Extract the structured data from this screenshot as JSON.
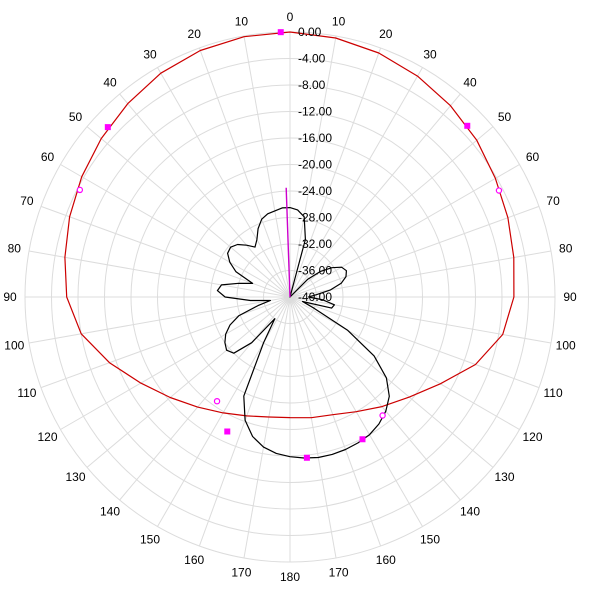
{
  "chart_data": {
    "type": "polar-line",
    "title": "",
    "angle_unit": "degrees",
    "angle_direction": "clockwise",
    "angle_zero": "top",
    "angle_tick_labels": [
      "0",
      "10",
      "20",
      "30",
      "40",
      "50",
      "60",
      "70",
      "80",
      "90",
      "100",
      "110",
      "120",
      "130",
      "140",
      "150",
      "160",
      "170",
      "180",
      "170",
      "160",
      "150",
      "140",
      "130",
      "120",
      "110",
      "100",
      "90",
      "80",
      "70",
      "60",
      "50",
      "40",
      "30",
      "20",
      "10"
    ],
    "radial_axis": {
      "label": "",
      "range": [
        -40,
        0
      ],
      "tick_values": [
        0,
        -4,
        -8,
        -12,
        -16,
        -20,
        -24,
        -28,
        -32,
        -36,
        -40
      ],
      "tick_labels": [
        "0.00",
        "-4.00",
        "-8.00",
        "-12.00",
        "-16.00",
        "-20.00",
        "-24.00",
        "-28.00",
        "-32.00",
        "-36.00",
        "-40.00"
      ]
    },
    "grid": true,
    "legend": "none",
    "colors": {
      "grid": "#dcdcdc",
      "series_red": "#cc0000",
      "series_black": "#000000",
      "marker": "#ff00ff",
      "reference_line": "#cc00cc"
    },
    "series": [
      {
        "color": "#cc0000",
        "angles": [
          0,
          10,
          20,
          30,
          40,
          50,
          60,
          70,
          80,
          90,
          100,
          110,
          120,
          130,
          140,
          150,
          160,
          170,
          180,
          190,
          200,
          210,
          220,
          230,
          240,
          250,
          260,
          270,
          280,
          290,
          300,
          310,
          320,
          330,
          340,
          350
        ],
        "values": [
          0,
          -0.3,
          -0.8,
          -1.5,
          -2.3,
          -3.2,
          -4.2,
          -5.0,
          -5.7,
          -6.2,
          -7.4,
          -10.2,
          -13.8,
          -16.5,
          -18.4,
          -20.0,
          -21.1,
          -21.5,
          -21.8,
          -21.6,
          -20.9,
          -19.8,
          -18.3,
          -16.4,
          -14.0,
          -11.0,
          -8.0,
          -6.3,
          -5.5,
          -4.6,
          -3.7,
          -2.8,
          -1.9,
          -1.0,
          -0.4,
          -0.1
        ]
      },
      {
        "color": "#000000",
        "angles": [
          0,
          5,
          10,
          15,
          20,
          25,
          30,
          35,
          40,
          45,
          50,
          55,
          60,
          65,
          70,
          75,
          80,
          85,
          90,
          95,
          100,
          105,
          110,
          115,
          120,
          125,
          130,
          135,
          140,
          145,
          150,
          155,
          160,
          165,
          170,
          175,
          180,
          185,
          190,
          195,
          200,
          205,
          210,
          215,
          220,
          225,
          230,
          235,
          240,
          245,
          250,
          255,
          260,
          265,
          270,
          275,
          280,
          285,
          290,
          295,
          300,
          305,
          310,
          315,
          320,
          325,
          330,
          335,
          340,
          345,
          350,
          355
        ],
        "values": [
          -26.5,
          -26.8,
          -27.7,
          -31.0,
          -40,
          -40,
          -40,
          -40,
          -40,
          -36.2,
          -34.0,
          -32.3,
          -31.0,
          -30.6,
          -31.0,
          -32.0,
          -33.8,
          -36.0,
          -37.2,
          -35.0,
          -33.2,
          -33.5,
          -38.0,
          -36.0,
          -30.0,
          -24.5,
          -21.0,
          -18.8,
          -17.5,
          -16.6,
          -16.0,
          -15.7,
          -15.5,
          -15.4,
          -15.4,
          -15.6,
          -15.9,
          -16.3,
          -17.0,
          -18.2,
          -20.2,
          -23.5,
          -32.0,
          -36.0,
          -31.0,
          -28.0,
          -27.5,
          -28.0,
          -28.8,
          -30.0,
          -31.8,
          -35.0,
          -37.0,
          -34.0,
          -30.2,
          -29.0,
          -29.5,
          -32.0,
          -34.0,
          -31.0,
          -29.5,
          -28.5,
          -28.3,
          -28.8,
          -29.8,
          -30.8,
          -30.0,
          -28.6,
          -27.5,
          -27.0,
          -26.8,
          -26.5
        ]
      }
    ],
    "markers": [
      {
        "angle": 358,
        "value": 0,
        "style": "filled"
      },
      {
        "angle": 313,
        "value": -2.4,
        "style": "filled"
      },
      {
        "angle": 297,
        "value": -4.4,
        "style": "hollow"
      },
      {
        "angle": 46,
        "value": -2.8,
        "style": "filled"
      },
      {
        "angle": 63,
        "value": -4.6,
        "style": "hollow"
      },
      {
        "angle": 174,
        "value": -15.6,
        "style": "filled"
      },
      {
        "angle": 153,
        "value": -15.9,
        "style": "filled"
      },
      {
        "angle": 205,
        "value": -17.6,
        "style": "filled"
      },
      {
        "angle": 142,
        "value": -17.3,
        "style": "hollow"
      },
      {
        "angle": 215,
        "value": -20.8,
        "style": "hollow"
      }
    ],
    "reference_line": {
      "angle": 358,
      "from": -40,
      "to": -23.5
    }
  }
}
